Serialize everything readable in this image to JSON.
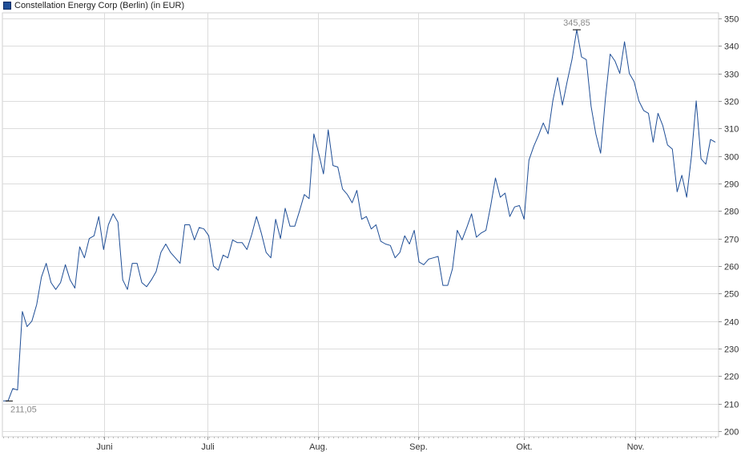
{
  "legend": {
    "label": "Constellation Energy Corp (Berlin) (in EUR)",
    "color": "#1f4e96"
  },
  "chart_data": {
    "type": "line",
    "title": "",
    "xlabel": "",
    "ylabel": "",
    "ylim": [
      198,
      352
    ],
    "y_ticks": [
      "200",
      "210",
      "220",
      "230",
      "240",
      "250",
      "260",
      "270",
      "280",
      "290",
      "300",
      "310",
      "320",
      "330",
      "340",
      "350"
    ],
    "month_labels": [
      "Juni",
      "Juli",
      "Aug.",
      "Sep.",
      "Okt.",
      "Nov."
    ],
    "grid": true,
    "annotations": {
      "max_label": "345,85",
      "min_label": "211,05"
    },
    "series": [
      {
        "color": "#1f4e96",
        "values": [
          211.05,
          211.0,
          215.5,
          215.0,
          243.5,
          238.0,
          240.0,
          246.0,
          256.0,
          261.0,
          254.0,
          251.5,
          254.0,
          260.5,
          255.0,
          252.0,
          267.0,
          263.0,
          270.0,
          271.0,
          278.0,
          266.0,
          275.0,
          279.0,
          276.0,
          255.0,
          251.5,
          261.0,
          261.0,
          254.0,
          252.5,
          255.0,
          258.0,
          265.0,
          268.0,
          265.0,
          263.0,
          261.0,
          275.0,
          275.0,
          269.5,
          274.0,
          273.5,
          271.0,
          260.0,
          258.5,
          264.0,
          263.0,
          269.5,
          268.5,
          268.5,
          266.0,
          271.5,
          278.0,
          272.0,
          265.0,
          263.0,
          277.0,
          270.0,
          281.0,
          274.5,
          274.5,
          280.0,
          286.0,
          284.5,
          308.0,
          301.0,
          293.5,
          309.5,
          296.5,
          296.0,
          288.0,
          286.0,
          283.0,
          287.5,
          277.0,
          278.0,
          273.5,
          275.0,
          269.0,
          268.0,
          267.5,
          263.0,
          265.0,
          271.0,
          268.0,
          273.0,
          261.5,
          260.5,
          262.5,
          263.0,
          263.5,
          253.0,
          253.0,
          259.0,
          273.0,
          269.5,
          274.0,
          279.0,
          270.5,
          272.0,
          273.0,
          282.0,
          292.0,
          285.0,
          286.5,
          278.0,
          281.5,
          282.0,
          277.0,
          298.5,
          303.5,
          307.5,
          312.0,
          308.0,
          320.0,
          328.5,
          318.5,
          327.0,
          335.0,
          345.85,
          336.0,
          335.0,
          318.0,
          308.0,
          301.0,
          321.0,
          337.0,
          334.5,
          330.0,
          341.5,
          330.0,
          327.0,
          320.0,
          316.5,
          315.5,
          305.0,
          315.5,
          311.0,
          304.0,
          302.5,
          287.0,
          293.0,
          285.0,
          300.0,
          320.0,
          299.0,
          297.0,
          306.0,
          305.0
        ]
      }
    ]
  }
}
